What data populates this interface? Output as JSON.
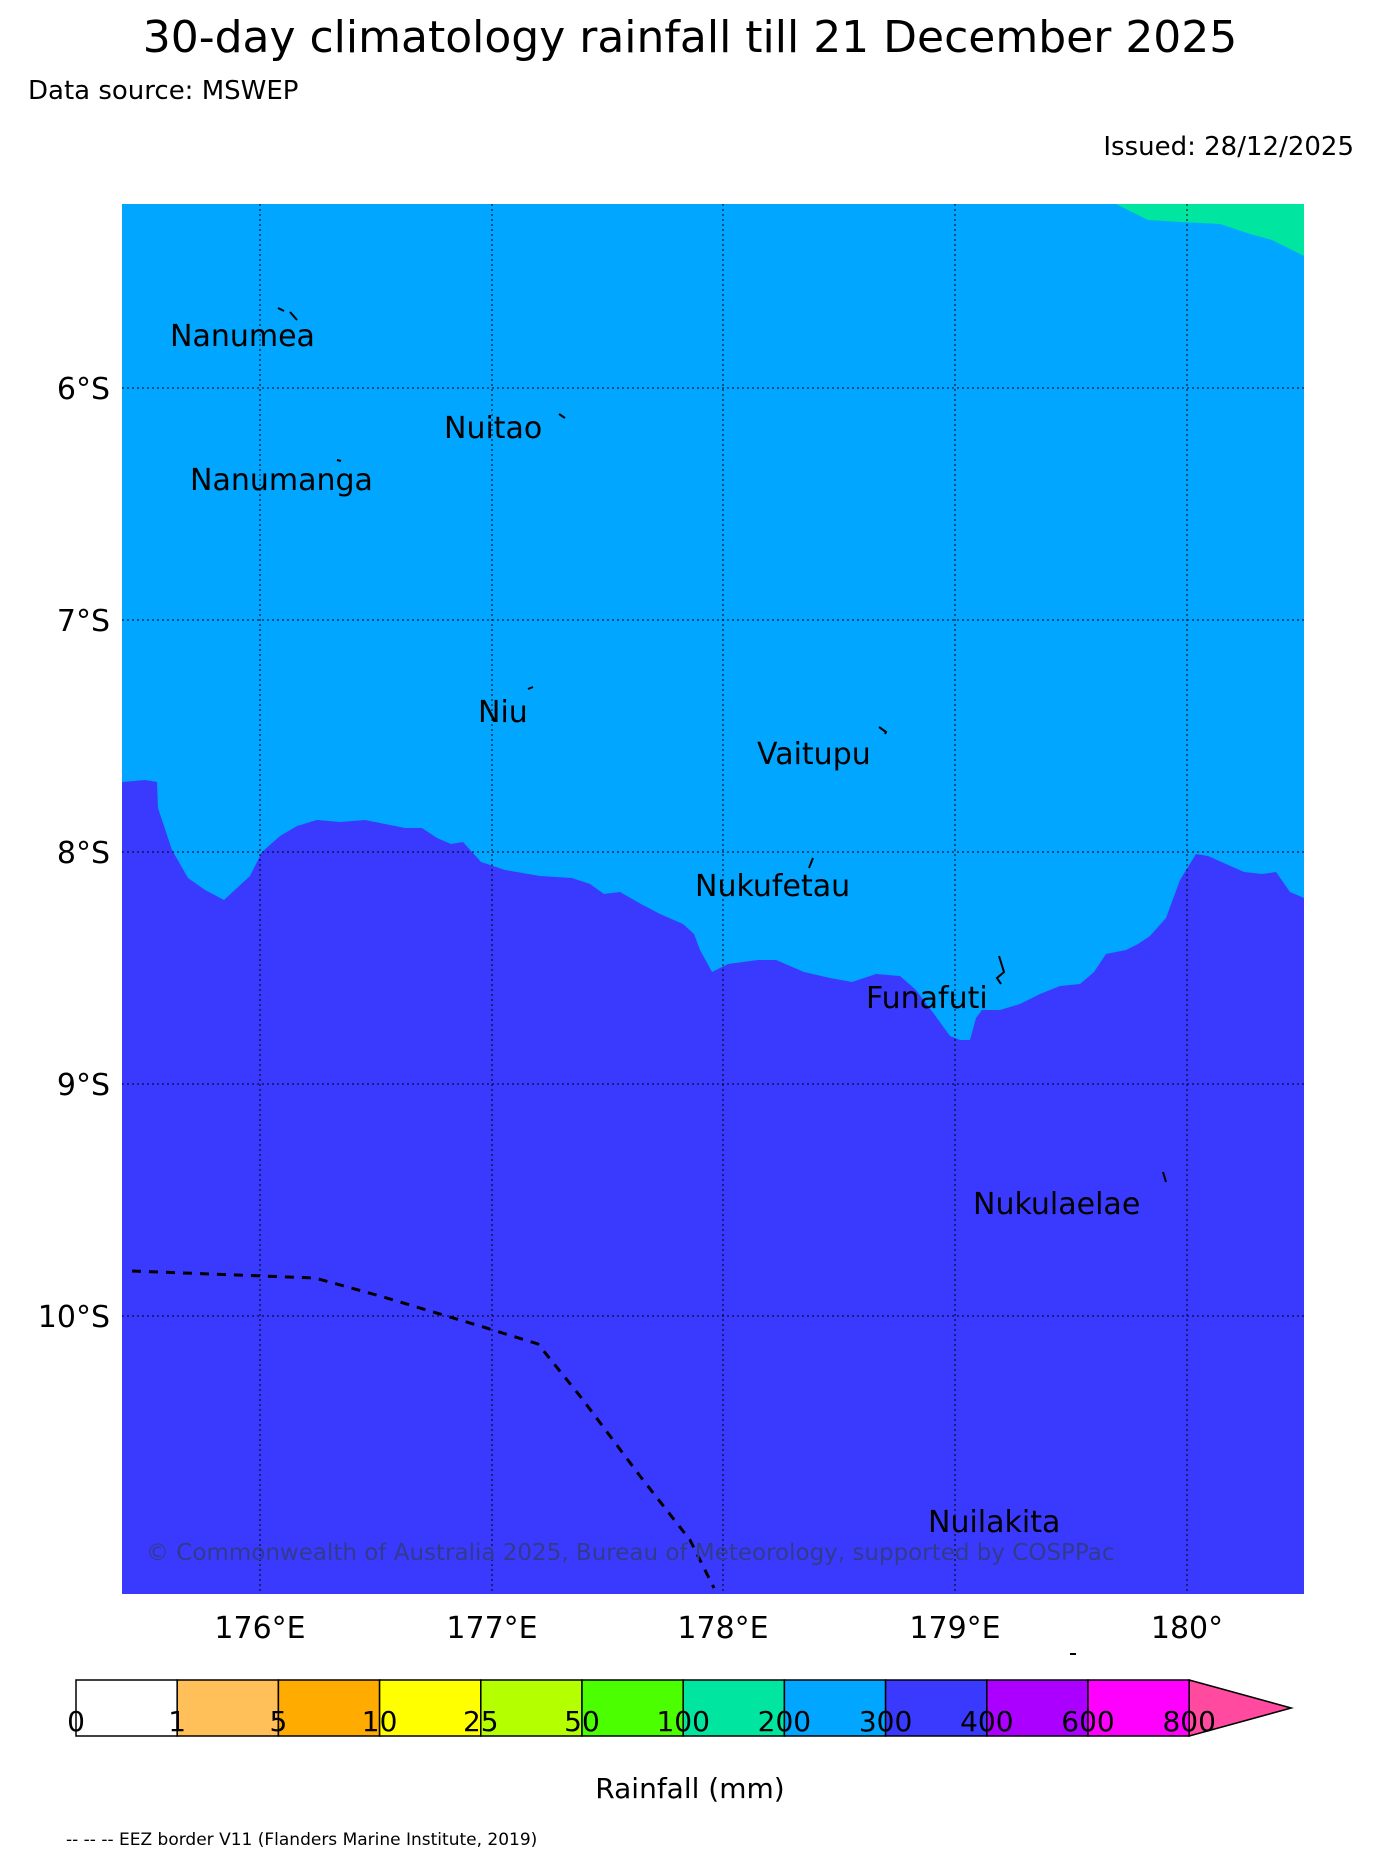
{
  "title": "30-day climatology rainfall till 21 December 2025",
  "data_source": "Data source: MSWEP",
  "issued": "Issued: 28/12/2025",
  "copyright": "© Commonwealth of Australia 2025, Bureau of Meteorology, supported by COSPPac",
  "eez_note": "-- -- -- EEZ border V11 (Flanders Marine Institute, 2019)",
  "colorbar": {
    "label": "Rainfall (mm)",
    "ticks": [
      "0",
      "1",
      "5",
      "10",
      "25",
      "50",
      "100",
      "200",
      "300",
      "400",
      "600",
      "800"
    ],
    "colors": [
      "#ffffff",
      "#ffbf59",
      "#ffab00",
      "#ffff00",
      "#b4ff00",
      "#4cff00",
      "#00e59f",
      "#00a6ff",
      "#3a3aff",
      "#ab00ff",
      "#ff00ff",
      "#ff4aa0"
    ]
  },
  "map": {
    "lat_labels": [
      "6°S",
      "7°S",
      "8°S",
      "9°S",
      "10°S"
    ],
    "lon_labels": [
      "176°E",
      "177°E",
      "178°E",
      "179°E",
      "180°"
    ],
    "region_colors": {
      "band_200_300": "#00a6ff",
      "band_300_400": "#3a3aff",
      "band_100_200": "#00e59f"
    },
    "islands": [
      {
        "name": "Nanumea"
      },
      {
        "name": "Nuitao"
      },
      {
        "name": "Nanumanga"
      },
      {
        "name": "Niu"
      },
      {
        "name": "Vaitupu"
      },
      {
        "name": "Nukufetau"
      },
      {
        "name": "Funafuti"
      },
      {
        "name": "Nukulaelae"
      },
      {
        "name": "Nuilakita"
      }
    ]
  }
}
